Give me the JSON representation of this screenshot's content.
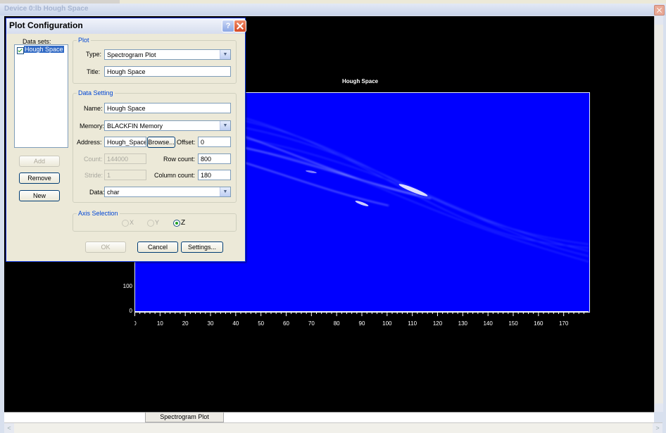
{
  "main_window": {
    "title": "Device 0:lb Hough Space",
    "bottom_tab": "Spectrogram Plot"
  },
  "chart_data": {
    "type": "heatmap",
    "title": "Hough Space",
    "x_ticks": [
      0,
      10,
      20,
      30,
      40,
      50,
      60,
      70,
      80,
      90,
      100,
      110,
      120,
      130,
      140,
      150,
      160,
      170
    ],
    "y_ticks": [
      0,
      100
    ],
    "xlim": [
      0,
      180
    ],
    "colormap": [
      "#0000ff",
      "#ffffff"
    ],
    "grid": false
  },
  "dialog": {
    "title": "Plot Configuration",
    "datasets_label": "Data sets:",
    "datasets": [
      {
        "label": "Hough Space",
        "checked": true
      }
    ],
    "add_label": "Add",
    "remove_label": "Remove",
    "new_label": "New",
    "plot_group_title": "Plot",
    "type_label": "Type:",
    "type_value": "Spectrogram Plot",
    "title_label": "Title:",
    "title_value": "Hough Space",
    "data_group_title": "Data Setting",
    "name_label": "Name:",
    "name_value": "Hough Space",
    "memory_label": "Memory:",
    "memory_value": "BLACKFIN Memory",
    "address_label": "Address:",
    "address_value": "Hough_Space",
    "browse_label": "Browse...",
    "offset_label": "Offset:",
    "offset_value": "0",
    "count_label": "Count:",
    "count_value": "144000",
    "row_count_label": "Row count:",
    "row_count_value": "800",
    "stride_label": "Stride:",
    "stride_value": "1",
    "column_count_label": "Column count:",
    "column_count_value": "180",
    "data_label": "Data:",
    "data_value": "char",
    "axis_group_title": "Axis Selection",
    "axis_options": [
      "X",
      "Y",
      "Z"
    ],
    "axis_selected": "Z",
    "ok_label": "OK",
    "cancel_label": "Cancel",
    "settings_label": "Settings..."
  },
  "colors": {
    "heatmap_bg": "#0000ff",
    "xp_blue": "#0831d9",
    "group_title": "#0046d5"
  }
}
